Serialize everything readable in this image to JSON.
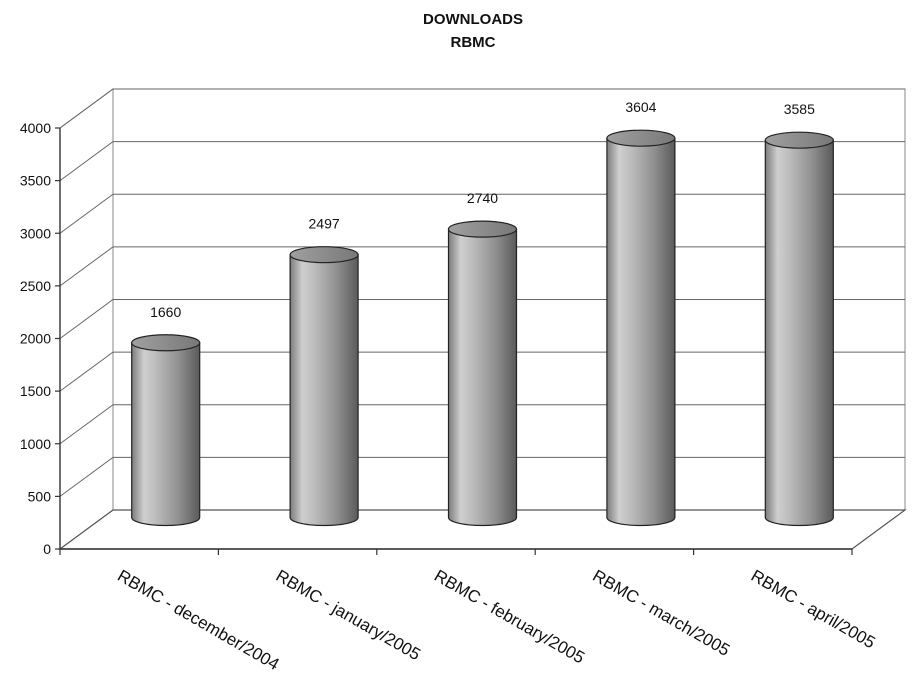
{
  "chart_data": {
    "type": "bar",
    "title": "DOWNLOADS",
    "subtitle": "RBMC",
    "categories": [
      "RBMC - december/2004",
      "RBMC - january/2005",
      "RBMC - february/2005",
      "RBMC - march/2005",
      "RBMC - april/2005"
    ],
    "values": [
      1660,
      2497,
      2740,
      3604,
      3585
    ],
    "data_labels": [
      "1660",
      "2497",
      "2740",
      "3604",
      "3585"
    ],
    "ylim": [
      0,
      4000
    ],
    "yticks": [
      "0",
      "500",
      "1000",
      "1500",
      "2000",
      "2500",
      "3000",
      "3500",
      "4000"
    ],
    "grid": true,
    "legend": "none",
    "style": "3d-cylinder",
    "colors": {
      "bar": "#a8a8a8",
      "bar_dark": "#6e6e6e",
      "bar_light": "#d6d6d6",
      "axis": "#333333"
    }
  }
}
